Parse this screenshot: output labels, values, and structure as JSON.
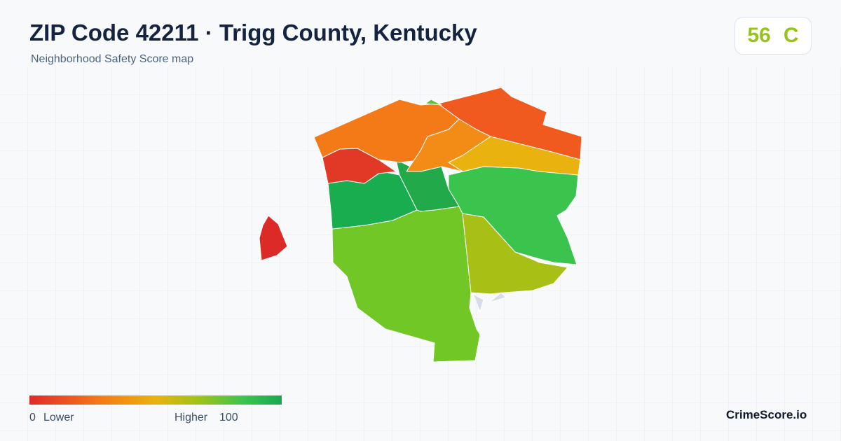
{
  "header": {
    "title": "ZIP Code 42211 · Trigg County, Kentucky",
    "subtitle": "Neighborhood Safety Score map"
  },
  "score": {
    "value": "56",
    "grade": "C"
  },
  "legend": {
    "min": "0",
    "min_label": "Lower",
    "max_label": "Higher",
    "max": "100"
  },
  "brand": "CrimeScore.io"
}
